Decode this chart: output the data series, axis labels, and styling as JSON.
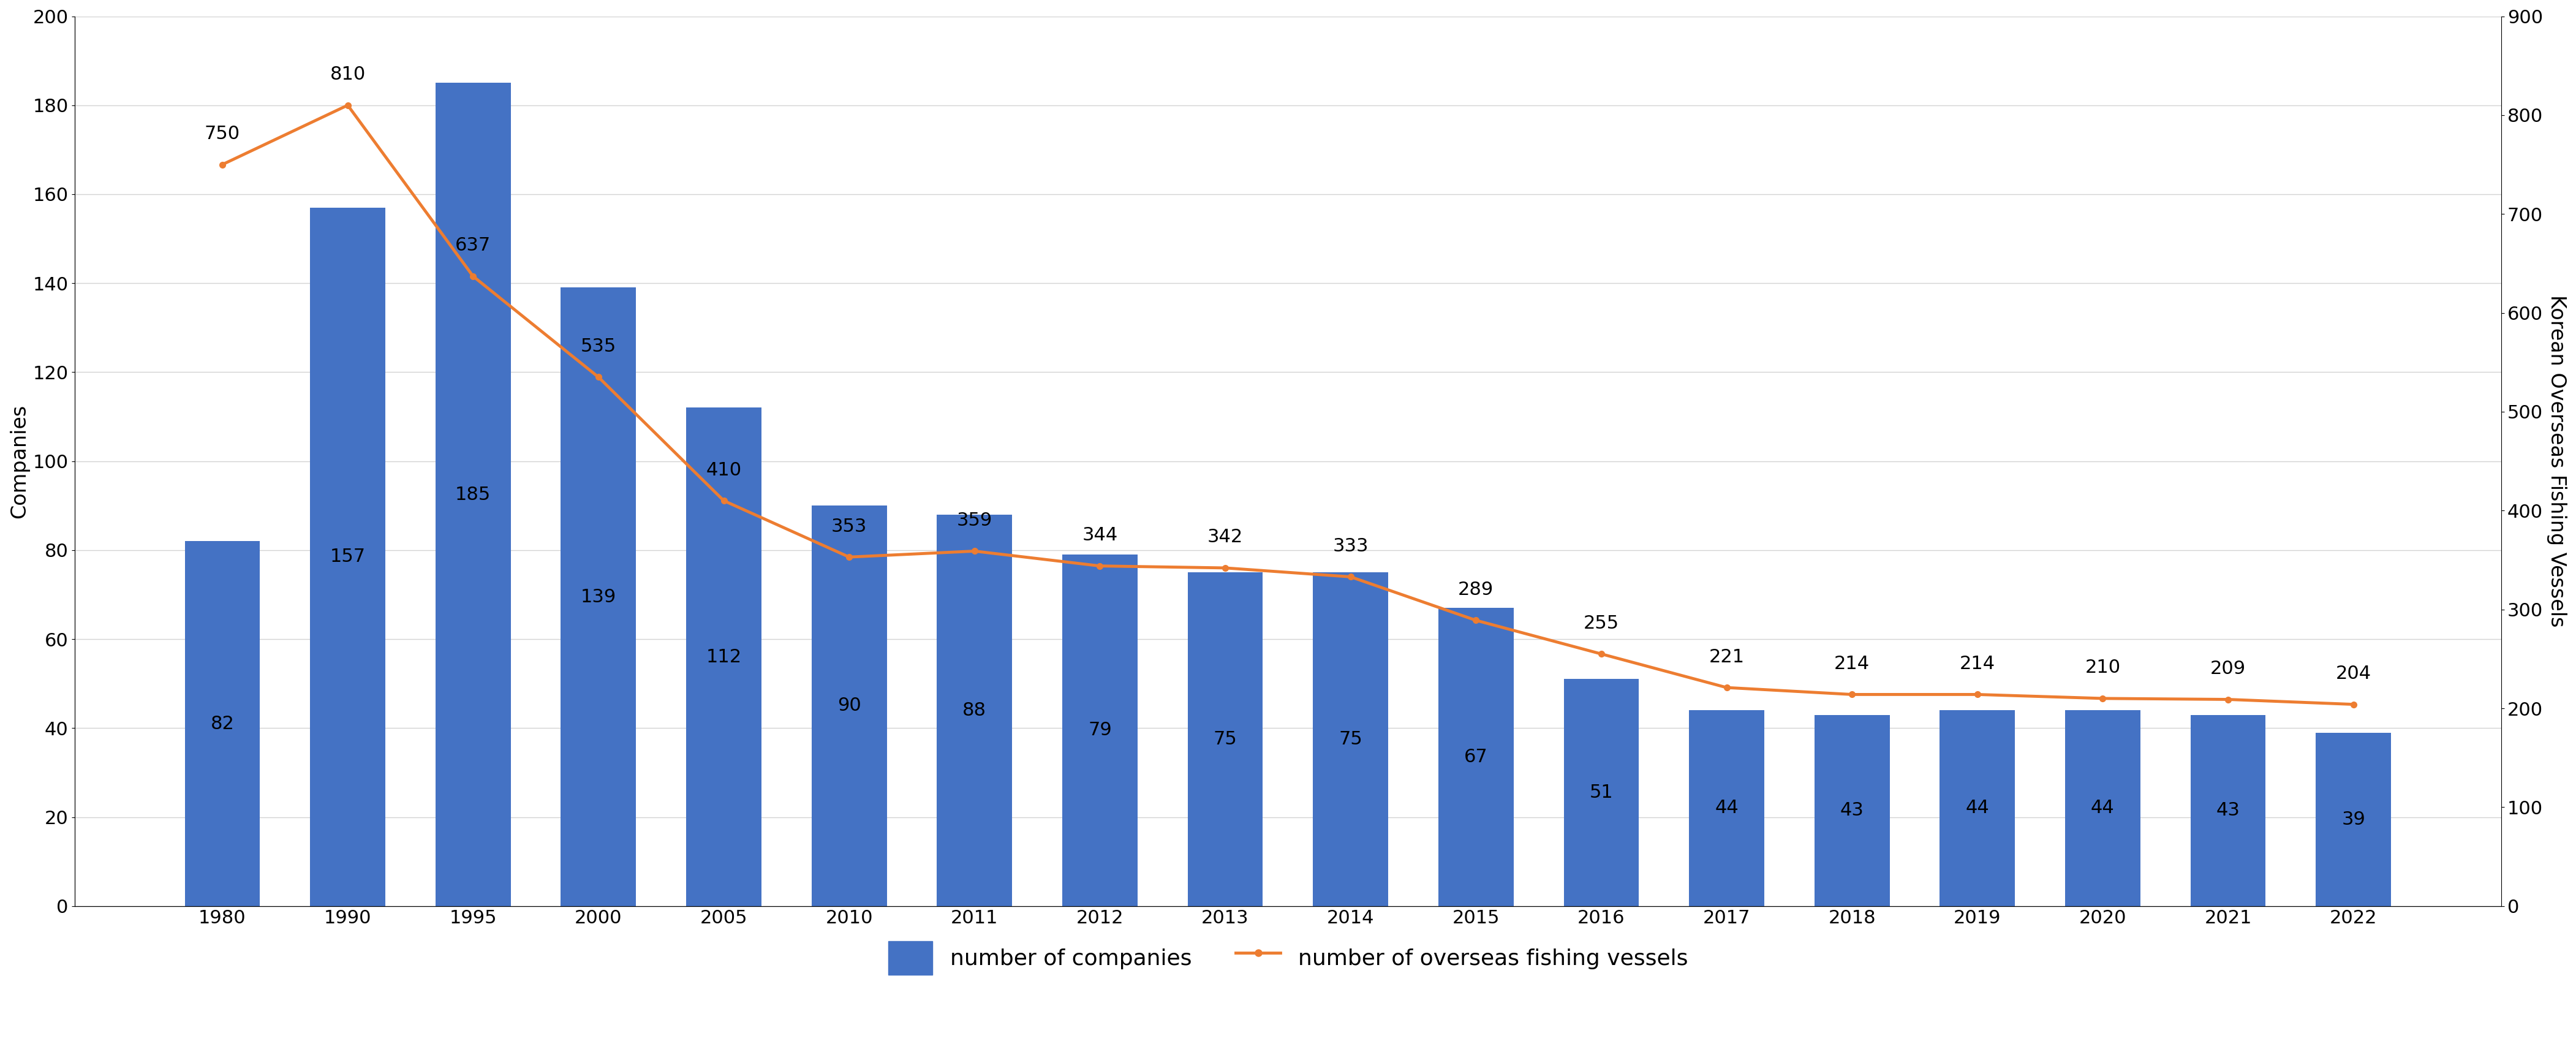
{
  "years": [
    1980,
    1990,
    1995,
    2000,
    2005,
    2010,
    2011,
    2012,
    2013,
    2014,
    2015,
    2016,
    2017,
    2018,
    2019,
    2020,
    2021,
    2022
  ],
  "companies": [
    82,
    157,
    185,
    139,
    112,
    90,
    88,
    79,
    75,
    75,
    67,
    51,
    44,
    43,
    44,
    44,
    43,
    39
  ],
  "vessels": [
    750,
    810,
    637,
    535,
    410,
    353,
    359,
    344,
    342,
    333,
    289,
    255,
    221,
    214,
    214,
    210,
    209,
    204
  ],
  "bar_color": "#4472C4",
  "line_color": "#ED7D31",
  "bar_label_color": "black",
  "line_label_color": "black",
  "ylabel_left": "Companies",
  "ylabel_right": "Korean Overseas Fishing Vessels",
  "ylim_left": [
    0,
    200
  ],
  "ylim_right": [
    0,
    900
  ],
  "yticks_left": [
    0,
    20,
    40,
    60,
    80,
    100,
    120,
    140,
    160,
    180,
    200
  ],
  "yticks_right": [
    0,
    100,
    200,
    300,
    400,
    500,
    600,
    700,
    800,
    900
  ],
  "legend_bar_label": "number of companies",
  "legend_line_label": "number of overseas fishing vessels",
  "background_color": "#ffffff",
  "bar_width": 0.6,
  "bar_fontsize": 22,
  "axis_tick_fontsize": 22,
  "legend_fontsize": 26,
  "ylabel_fontsize": 24,
  "ylabel_right_fontsize": 24
}
